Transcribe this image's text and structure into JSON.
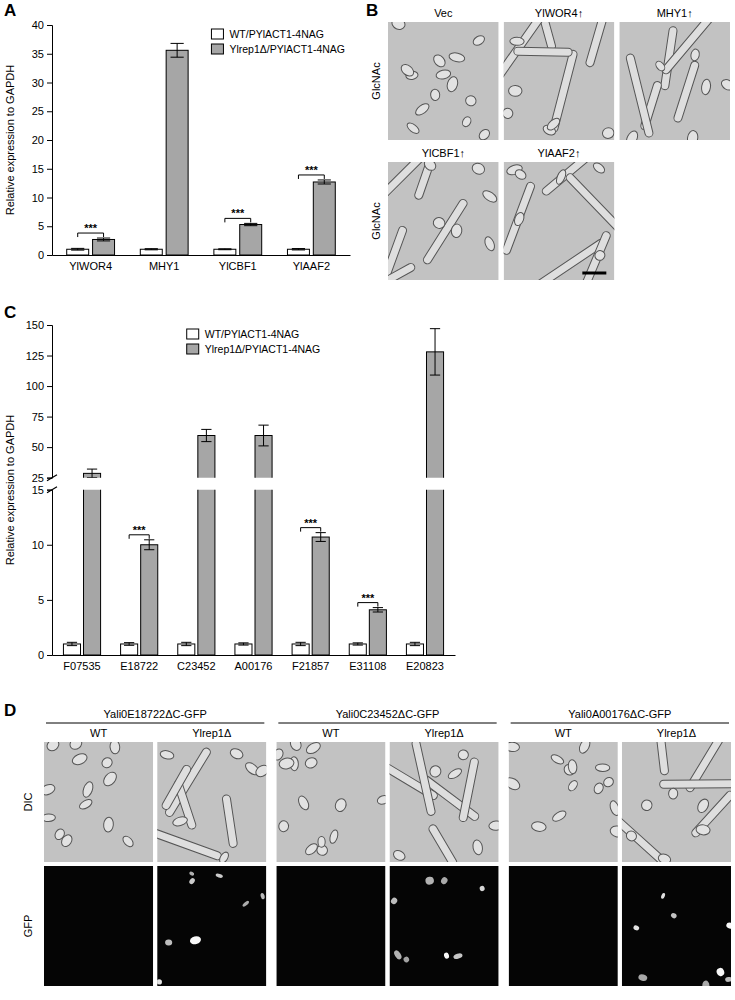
{
  "chart_data": [
    {
      "type": "bar",
      "panel": "A",
      "ylabel": "Relative expression to GAPDH",
      "categories": [
        "YlWOR4",
        "MHY1",
        "YlCBF1",
        "YlAAF2"
      ],
      "series": [
        {
          "name": "WT/PYlACT1-4NAG",
          "color": "#ffffff",
          "values": [
            1,
            1,
            1,
            1
          ],
          "errors": [
            0.15,
            0.1,
            0.08,
            0.12
          ]
        },
        {
          "name": "Ylrep1Δ/PYlACT1-4NAG",
          "color": "#a6a6a6",
          "values": [
            2.7,
            35.6,
            5.3,
            12.7
          ],
          "errors": [
            0.25,
            1.2,
            0.2,
            0.35
          ]
        }
      ],
      "ylim": [
        0,
        40
      ],
      "yticks": [
        0,
        5,
        10,
        15,
        20,
        25,
        30,
        35,
        40
      ],
      "legend": "upper right",
      "annotations": [
        {
          "category": "YlWOR4",
          "text": "***"
        },
        {
          "category": "YlCBF1",
          "text": "***"
        },
        {
          "category": "YlAAF2",
          "text": "***"
        }
      ]
    },
    {
      "type": "bar",
      "panel": "C",
      "ylabel": "Relative expression to GAPDH",
      "categories": [
        "F07535",
        "E18722",
        "C23452",
        "A00176",
        "F21857",
        "E31108",
        "E20823"
      ],
      "series": [
        {
          "name": "WT/PYlACT1-4NAG",
          "color": "#ffffff",
          "values": [
            1,
            1,
            1,
            1,
            1,
            1,
            1
          ],
          "errors": [
            0.15,
            0.12,
            0.15,
            0.1,
            0.15,
            0.1,
            0.15
          ]
        },
        {
          "name": "Ylrep1Δ/PYlACT1-4NAG",
          "color": "#a6a6a6",
          "values": [
            28.5,
            10,
            59.5,
            59.5,
            10.7,
            4.1,
            128
          ],
          "errors": [
            3.5,
            0.45,
            5,
            8.5,
            0.4,
            0.2,
            19
          ]
        }
      ],
      "ylim": [
        0,
        150
      ],
      "ybreak": [
        15,
        25
      ],
      "yticks": [
        0,
        5,
        10,
        15,
        25,
        50,
        75,
        100,
        125,
        150
      ],
      "legend": "upper center",
      "annotations": [
        {
          "category": "E18722",
          "text": "***"
        },
        {
          "category": "F21857",
          "text": "***"
        },
        {
          "category": "E31108",
          "text": "***"
        }
      ]
    }
  ],
  "panel_b": {
    "panel": "B",
    "rows": [
      {
        "label": "GlcNAc",
        "images": [
          "Vec",
          "YlWOR4↑",
          "MHY1↑"
        ]
      },
      {
        "label": "GlcNAc",
        "images": [
          "YlCBF1↑",
          "YlAAF2↑"
        ]
      }
    ]
  },
  "panel_d": {
    "panel": "D",
    "rows": [
      "DIC",
      "GFP"
    ],
    "columns": [
      {
        "title": "Yali0E18722ΔC-GFP",
        "strains": [
          "WT",
          "Ylrep1Δ"
        ]
      },
      {
        "title": "Yali0C23452ΔC-GFP",
        "strains": [
          "WT",
          "Ylrep1Δ"
        ]
      },
      {
        "title": "Yali0A00176ΔC-GFP",
        "strains": [
          "WT",
          "Ylrep1Δ"
        ]
      }
    ]
  }
}
